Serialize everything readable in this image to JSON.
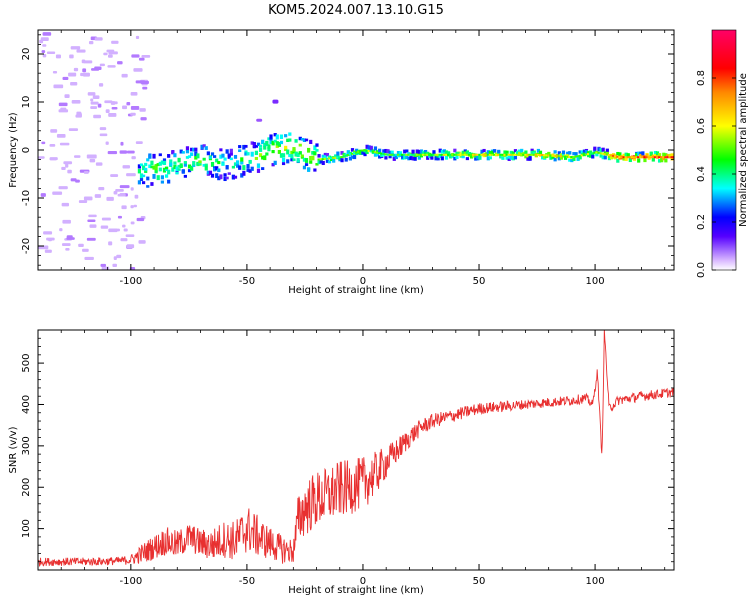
{
  "title": "KOM5.2024.007.13.10.G15",
  "colors": {
    "snr_line": "#e83030",
    "axis": "#000000",
    "background": "#ffffff"
  },
  "chart_data": [
    {
      "type": "heatmap",
      "xlabel": "Height of straight line (km)",
      "ylabel": "Frequency (Hz)",
      "xlim": [
        -140,
        134
      ],
      "ylim": [
        -25,
        25
      ],
      "x_ticks": [
        -100,
        -50,
        0,
        50,
        100
      ],
      "y_ticks": [
        -20,
        -10,
        0,
        10,
        20
      ],
      "colorbar": {
        "label": "Normalized spectral amplitude",
        "range": [
          0,
          1
        ],
        "ticks": [
          "0.0",
          "0.2",
          "0.4",
          "0.6",
          "0.8"
        ],
        "colormap": "hsv-rainbow (violet → blue → cyan → green → yellow → red → magenta)"
      },
      "ridge": {
        "description": "dominant frequency trace vs height",
        "x": [
          -97,
          -90,
          -80,
          -70,
          -60,
          -50,
          -40,
          -30,
          -20,
          -10,
          0,
          10,
          25,
          50,
          75,
          90,
          100,
          110,
          134
        ],
        "y": [
          -5,
          -4,
          -3,
          -2,
          -3,
          -2,
          0,
          0.5,
          -2,
          -1.5,
          0,
          -1,
          -1,
          -1,
          -1,
          -1.5,
          -0.5,
          -1.5,
          -1.5
        ],
        "amplitude": [
          0.45,
          0.5,
          0.4,
          0.5,
          0.35,
          0.45,
          0.55,
          0.6,
          0.5,
          0.45,
          0.5,
          0.4,
          0.5,
          0.55,
          0.6,
          0.55,
          0.5,
          0.75,
          0.8
        ]
      },
      "noise_region": {
        "description": "scattered low-amplitude speckle",
        "x_range": [
          -140,
          -95
        ],
        "y_range": [
          -25,
          25
        ],
        "amplitude": 0.05
      }
    },
    {
      "type": "line",
      "xlabel": "Height of straight line (km)",
      "ylabel": "SNR (v/v)",
      "xlim": [
        -140,
        134
      ],
      "ylim": [
        0,
        580
      ],
      "x_ticks": [
        -100,
        -50,
        0,
        50,
        100
      ],
      "y_ticks": [
        100,
        200,
        300,
        400,
        500
      ],
      "series": [
        {
          "x": [
            -140,
            -120,
            -105,
            -100,
            -95,
            -90,
            -85,
            -80,
            -75,
            -70,
            -65,
            -60,
            -55,
            -50,
            -45,
            -40,
            -35,
            -30,
            -28,
            -25,
            -20,
            -15,
            -10,
            -5,
            0,
            5,
            10,
            15,
            20,
            25,
            30,
            40,
            50,
            60,
            70,
            80,
            90,
            96,
            99,
            101,
            103,
            104,
            106,
            110,
            120,
            134
          ],
          "y": [
            20,
            20,
            22,
            25,
            40,
            55,
            70,
            60,
            80,
            65,
            60,
            75,
            70,
            100,
            80,
            65,
            50,
            45,
            120,
            150,
            170,
            180,
            195,
            200,
            210,
            230,
            260,
            290,
            320,
            345,
            360,
            375,
            390,
            395,
            400,
            405,
            410,
            415,
            400,
            480,
            270,
            580,
            390,
            410,
            420,
            430
          ],
          "noise_amplitude": [
            10,
            10,
            10,
            12,
            25,
            30,
            35,
            35,
            35,
            35,
            40,
            45,
            50,
            60,
            50,
            40,
            35,
            30,
            60,
            70,
            70,
            70,
            70,
            65,
            65,
            55,
            40,
            30,
            25,
            20,
            18,
            16,
            14,
            13,
            12,
            12,
            12,
            12,
            10,
            10,
            10,
            10,
            12,
            12,
            12,
            12
          ]
        }
      ]
    }
  ]
}
